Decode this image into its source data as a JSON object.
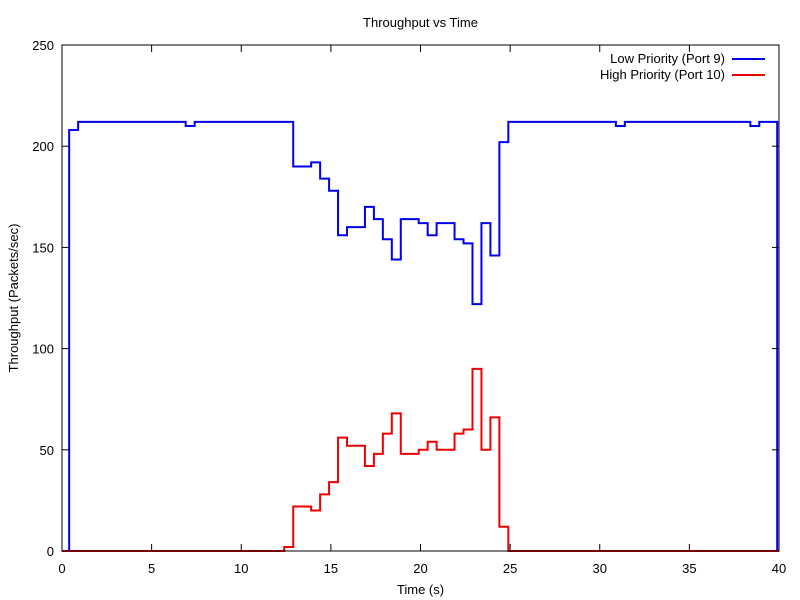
{
  "chart_data": {
    "type": "line",
    "step": "post",
    "title": "Throughput vs Time",
    "xlabel": "Time (s)",
    "ylabel": "Throughput (Packets/sec)",
    "xlim": [
      0,
      40
    ],
    "ylim": [
      0,
      250
    ],
    "xticks": [
      0,
      5,
      10,
      15,
      20,
      25,
      30,
      35,
      40
    ],
    "yticks": [
      0,
      50,
      100,
      150,
      200,
      250
    ],
    "grid": false,
    "legend_position": "top-right",
    "series": [
      {
        "name": "Low Priority (Port 9)",
        "color": "#0000ee",
        "points": [
          [
            0,
            0
          ],
          [
            0.4,
            208
          ],
          [
            0.9,
            212
          ],
          [
            6.9,
            210
          ],
          [
            7.4,
            212
          ],
          [
            12.9,
            190
          ],
          [
            13.9,
            192
          ],
          [
            14.4,
            184
          ],
          [
            14.9,
            178
          ],
          [
            15.4,
            156
          ],
          [
            15.9,
            160
          ],
          [
            16.9,
            170
          ],
          [
            17.4,
            164
          ],
          [
            17.9,
            154
          ],
          [
            18.4,
            144
          ],
          [
            18.9,
            164
          ],
          [
            19.9,
            162
          ],
          [
            20.4,
            156
          ],
          [
            20.9,
            162
          ],
          [
            21.9,
            154
          ],
          [
            22.4,
            152
          ],
          [
            22.9,
            122
          ],
          [
            23.4,
            162
          ],
          [
            23.9,
            146
          ],
          [
            24.4,
            202
          ],
          [
            24.9,
            212
          ],
          [
            30.9,
            210
          ],
          [
            31.4,
            212
          ],
          [
            38.4,
            210
          ],
          [
            38.9,
            212
          ],
          [
            39.9,
            0
          ]
        ]
      },
      {
        "name": "High Priority (Port 10)",
        "color": "#ee0000",
        "points": [
          [
            0,
            0
          ],
          [
            12.4,
            2
          ],
          [
            12.9,
            22
          ],
          [
            13.9,
            20
          ],
          [
            14.4,
            28
          ],
          [
            14.9,
            34
          ],
          [
            15.4,
            56
          ],
          [
            15.9,
            52
          ],
          [
            16.9,
            42
          ],
          [
            17.4,
            48
          ],
          [
            17.9,
            58
          ],
          [
            18.4,
            68
          ],
          [
            18.9,
            48
          ],
          [
            19.9,
            50
          ],
          [
            20.4,
            54
          ],
          [
            20.9,
            50
          ],
          [
            21.9,
            58
          ],
          [
            22.4,
            60
          ],
          [
            22.9,
            90
          ],
          [
            23.4,
            50
          ],
          [
            23.9,
            66
          ],
          [
            24.4,
            12
          ],
          [
            24.9,
            0
          ],
          [
            40,
            0
          ]
        ]
      }
    ]
  }
}
